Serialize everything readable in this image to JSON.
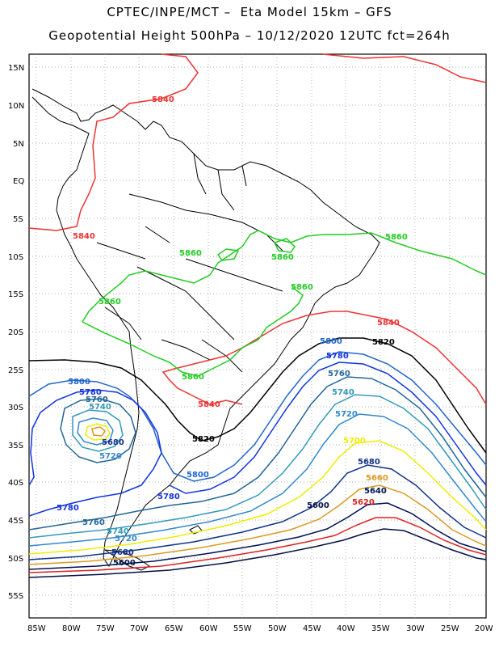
{
  "header": {
    "line1": "CPTEC/INPE/MCT –  Eta Model 15km – GFS",
    "line2": "Geopotential Height 500hPa – 10/12/2020 12UTC fct=264h"
  },
  "axes": {
    "lat_labels": [
      "15N",
      "10N",
      "5N",
      "EQ",
      "5S",
      "10S",
      "15S",
      "20S",
      "25S",
      "30S",
      "35S",
      "40S",
      "45S",
      "50S",
      "55S"
    ],
    "lon_labels": [
      "85W",
      "80W",
      "75W",
      "70W",
      "65W",
      "60W",
      "55W",
      "50W",
      "45W",
      "40W",
      "35W",
      "30W",
      "25W",
      "20W"
    ]
  },
  "contour_colors": {
    "c5860": "#22cc22",
    "c5840": "#ee3333",
    "c5820": "#000000",
    "c5800": "#2266cc",
    "c5780": "#1133dd",
    "c5760": "#226699",
    "c5740": "#3399bb",
    "c5720": "#3388cc",
    "c5700": "#eeee00",
    "c5680": "#113388",
    "c5660": "#dd9922",
    "c5640": "#001155",
    "c5620": "#dd2222",
    "c5600": "#001144"
  },
  "contour_labels": [
    {
      "text": "5840",
      "color": "c5840"
    },
    {
      "text": "5840",
      "color": "c5840"
    },
    {
      "text": "5840",
      "color": "c5840"
    },
    {
      "text": "5840",
      "color": "c5840"
    },
    {
      "text": "5860",
      "color": "c5860"
    },
    {
      "text": "5860",
      "color": "c5860"
    },
    {
      "text": "5860",
      "color": "c5860"
    },
    {
      "text": "5860",
      "color": "c5860"
    },
    {
      "text": "5860",
      "color": "c5860"
    },
    {
      "text": "5860",
      "color": "c5860"
    },
    {
      "text": "5820",
      "color": "c5820"
    },
    {
      "text": "5820",
      "color": "c5820"
    },
    {
      "text": "5800",
      "color": "c5800"
    },
    {
      "text": "5800",
      "color": "c5800"
    },
    {
      "text": "5800",
      "color": "c5800"
    },
    {
      "text": "5780",
      "color": "c5780"
    },
    {
      "text": "5780",
      "color": "c5780"
    },
    {
      "text": "5780",
      "color": "c5780"
    },
    {
      "text": "5780",
      "color": "c5780"
    },
    {
      "text": "5760",
      "color": "c5760"
    },
    {
      "text": "5760",
      "color": "c5760"
    },
    {
      "text": "5760",
      "color": "c5760"
    },
    {
      "text": "5740",
      "color": "c5740"
    },
    {
      "text": "5740",
      "color": "c5740"
    },
    {
      "text": "5740",
      "color": "c5740"
    },
    {
      "text": "5720",
      "color": "c5720"
    },
    {
      "text": "5720",
      "color": "c5720"
    },
    {
      "text": "5720",
      "color": "c5720"
    },
    {
      "text": "5700",
      "color": "c5700"
    },
    {
      "text": "5680",
      "color": "c5680"
    },
    {
      "text": "5680",
      "color": "c5680"
    },
    {
      "text": "5680",
      "color": "c5680"
    },
    {
      "text": "5660",
      "color": "c5660"
    },
    {
      "text": "5640",
      "color": "c5640"
    },
    {
      "text": "5620",
      "color": "c5620"
    },
    {
      "text": "5600",
      "color": "c5600"
    },
    {
      "text": "5600",
      "color": "c5600"
    }
  ]
}
